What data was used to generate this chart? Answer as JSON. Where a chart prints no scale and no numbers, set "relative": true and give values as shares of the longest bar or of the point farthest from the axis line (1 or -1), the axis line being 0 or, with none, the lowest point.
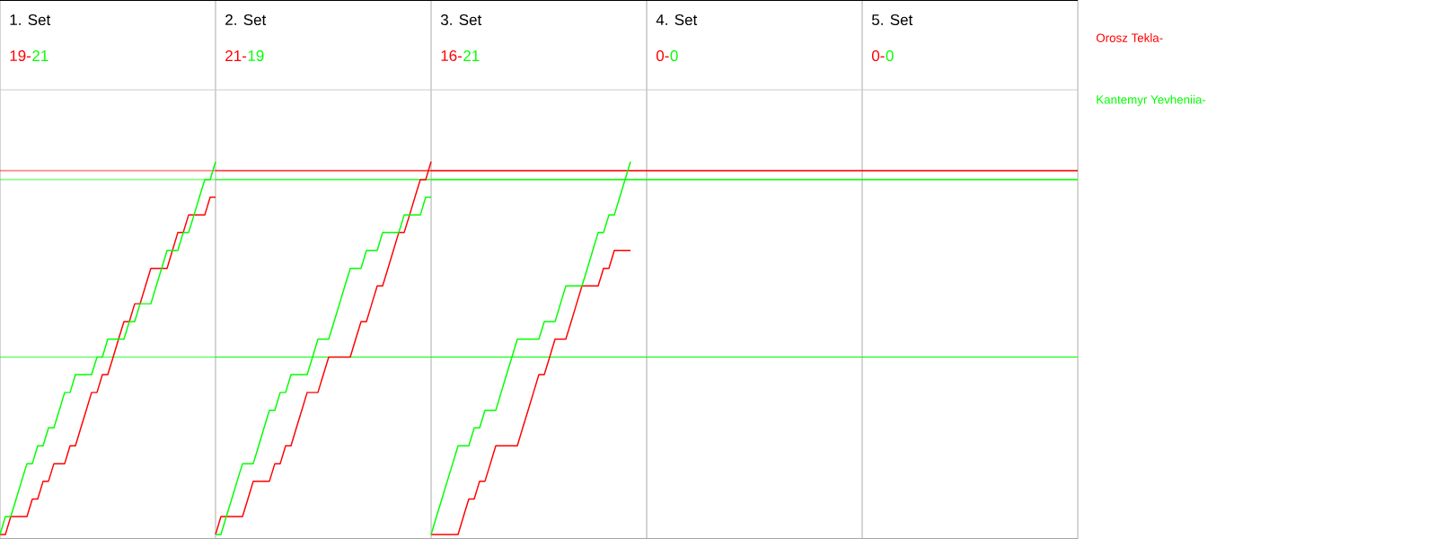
{
  "chart_data": [
    {
      "type": "line",
      "title": "1. Set",
      "annotations": [
        "19-",
        "21"
      ],
      "relative": true,
      "categories": [
        null,
        null,
        null,
        null,
        null,
        null,
        null,
        null,
        null,
        null,
        null,
        null,
        null,
        null,
        null,
        null,
        null,
        null,
        null,
        null,
        null,
        null,
        null,
        null,
        null,
        null,
        null,
        null,
        null,
        null,
        null,
        null,
        null,
        null,
        null,
        null,
        null,
        null,
        null,
        null,
        null
      ],
      "series": [
        {
          "name": "Orosz Tekla-",
          "color": "#ff0000",
          "values": [
            0,
            0,
            0.048,
            0.048,
            0.048,
            0.048,
            0.095,
            0.095,
            0.143,
            0.143,
            0.19,
            0.19,
            0.19,
            0.238,
            0.238,
            0.286,
            0.333,
            0.381,
            0.381,
            0.429,
            0.429,
            0.476,
            0.524,
            0.571,
            0.571,
            0.619,
            0.619,
            0.667,
            0.714,
            0.714,
            0.714,
            0.714,
            0.762,
            0.81,
            0.81,
            0.857,
            0.857,
            0.857,
            0.857,
            0.905,
            0.905
          ]
        },
        {
          "name": "Kantemyr Yevheniia-",
          "color": "#00ff00",
          "values": [
            0,
            0.048,
            0.048,
            0.095,
            0.143,
            0.19,
            0.19,
            0.238,
            0.238,
            0.286,
            0.286,
            0.333,
            0.381,
            0.381,
            0.429,
            0.429,
            0.429,
            0.429,
            0.476,
            0.476,
            0.524,
            0.524,
            0.524,
            0.524,
            0.571,
            0.571,
            0.619,
            0.619,
            0.619,
            0.667,
            0.714,
            0.762,
            0.762,
            0.762,
            0.81,
            0.81,
            0.857,
            0.905,
            0.952,
            0.952,
            1
          ]
        }
      ],
      "ref_lines": [
        {
          "axis": "y",
          "value": 0.976,
          "color": "#ff0000"
        },
        {
          "axis": "y",
          "value": 0.952,
          "color": "#00ff00"
        },
        {
          "axis": "y",
          "value": 0.476,
          "color": "#00ff00"
        }
      ]
    },
    {
      "type": "line",
      "title": "2. Set",
      "annotations": [
        "21-",
        "19"
      ],
      "relative": true,
      "categories": [
        null,
        null,
        null,
        null,
        null,
        null,
        null,
        null,
        null,
        null,
        null,
        null,
        null,
        null,
        null,
        null,
        null,
        null,
        null,
        null,
        null,
        null,
        null,
        null,
        null,
        null,
        null,
        null,
        null,
        null,
        null,
        null,
        null,
        null,
        null,
        null,
        null,
        null,
        null,
        null,
        null
      ],
      "series": [
        {
          "color": "#ff0000",
          "values": [
            0,
            0.048,
            0.048,
            0.048,
            0.048,
            0.048,
            0.095,
            0.143,
            0.143,
            0.143,
            0.143,
            0.19,
            0.19,
            0.238,
            0.238,
            0.286,
            0.333,
            0.381,
            0.381,
            0.381,
            0.429,
            0.476,
            0.476,
            0.476,
            0.476,
            0.476,
            0.524,
            0.571,
            0.571,
            0.619,
            0.667,
            0.667,
            0.714,
            0.762,
            0.81,
            0.81,
            0.857,
            0.905,
            0.952,
            0.952,
            1
          ]
        },
        {
          "color": "#00ff00",
          "values": [
            0,
            0,
            0.048,
            0.095,
            0.143,
            0.19,
            0.19,
            0.19,
            0.238,
            0.286,
            0.333,
            0.333,
            0.381,
            0.381,
            0.429,
            0.429,
            0.429,
            0.429,
            0.476,
            0.524,
            0.524,
            0.524,
            0.571,
            0.619,
            0.667,
            0.714,
            0.714,
            0.714,
            0.762,
            0.762,
            0.762,
            0.81,
            0.81,
            0.81,
            0.81,
            0.857,
            0.857,
            0.857,
            0.857,
            0.905,
            0.905
          ]
        }
      ],
      "ref_lines": [
        {
          "axis": "y",
          "value": 0.976,
          "color": "#ff0000"
        },
        {
          "axis": "y",
          "value": 0.952,
          "color": "#00ff00"
        },
        {
          "axis": "y",
          "value": 0.476,
          "color": "#00ff00"
        }
      ]
    },
    {
      "type": "line",
      "title": "3. Set",
      "annotations": [
        "16-",
        "21"
      ],
      "relative": true,
      "categories": [
        null,
        null,
        null,
        null,
        null,
        null,
        null,
        null,
        null,
        null,
        null,
        null,
        null,
        null,
        null,
        null,
        null,
        null,
        null,
        null,
        null,
        null,
        null,
        null,
        null,
        null,
        null,
        null,
        null,
        null,
        null,
        null,
        null,
        null,
        null,
        null,
        null,
        null,
        null,
        null,
        null
      ],
      "series": [
        {
          "color": "#ff0000",
          "values": [
            0,
            0,
            0,
            0,
            0,
            0,
            0.048,
            0.095,
            0.095,
            0.143,
            0.143,
            0.19,
            0.238,
            0.238,
            0.238,
            0.238,
            0.238,
            0.286,
            0.333,
            0.381,
            0.429,
            0.429,
            0.476,
            0.524,
            0.524,
            0.524,
            0.571,
            0.619,
            0.667,
            0.667,
            0.667,
            0.667,
            0.714,
            0.714,
            0.762,
            0.762,
            0.762,
            0.762,
            null,
            null,
            null
          ]
        },
        {
          "color": "#00ff00",
          "values": [
            0,
            0.048,
            0.095,
            0.143,
            0.19,
            0.238,
            0.238,
            0.238,
            0.286,
            0.286,
            0.333,
            0.333,
            0.333,
            0.381,
            0.429,
            0.476,
            0.524,
            0.524,
            0.524,
            0.524,
            0.524,
            0.571,
            0.571,
            0.571,
            0.619,
            0.667,
            0.667,
            0.667,
            0.667,
            0.714,
            0.762,
            0.81,
            0.81,
            0.857,
            0.857,
            0.905,
            0.952,
            1,
            null,
            null,
            null
          ]
        }
      ],
      "ref_lines": [
        {
          "axis": "y",
          "value": 0.976,
          "color": "#ff0000"
        },
        {
          "axis": "y",
          "value": 0.952,
          "color": "#00ff00"
        },
        {
          "axis": "y",
          "value": 0.476,
          "color": "#00ff00"
        }
      ]
    },
    {
      "type": "other",
      "title": "4. Set",
      "annotations": [
        "0-",
        "0"
      ],
      "colors": [
        "#ff0000",
        "#00ff00"
      ]
    },
    {
      "type": "other",
      "title": "5. Set",
      "annotations": [
        "0-",
        "0"
      ],
      "colors": [
        "#ff0000",
        "#00ff00"
      ]
    }
  ]
}
